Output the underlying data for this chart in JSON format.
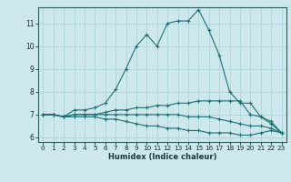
{
  "xlabel": "Humidex (Indice chaleur)",
  "background_color": "#cce8ec",
  "grid_color": "#aacdd4",
  "line_color": "#1e7070",
  "xlim": [
    -0.5,
    23.5
  ],
  "ylim": [
    5.8,
    11.7
  ],
  "xticks": [
    0,
    1,
    2,
    3,
    4,
    5,
    6,
    7,
    8,
    9,
    10,
    11,
    12,
    13,
    14,
    15,
    16,
    17,
    18,
    19,
    20,
    21,
    22,
    23
  ],
  "yticks": [
    6,
    7,
    8,
    9,
    10,
    11
  ],
  "curves": [
    {
      "x": [
        0,
        1,
        2,
        3,
        4,
        5,
        6,
        7,
        8,
        9,
        10,
        11,
        12,
        13,
        14,
        15,
        16,
        17,
        18,
        19,
        20,
        21,
        22,
        23
      ],
      "y": [
        7.0,
        7.0,
        6.9,
        7.2,
        7.2,
        7.3,
        7.5,
        8.1,
        9.0,
        10.0,
        10.5,
        10.0,
        11.0,
        11.1,
        11.1,
        11.6,
        10.7,
        9.6,
        8.0,
        7.5,
        7.5,
        6.9,
        6.7,
        6.2
      ]
    },
    {
      "x": [
        0,
        1,
        2,
        3,
        4,
        5,
        6,
        7,
        8,
        9,
        10,
        11,
        12,
        13,
        14,
        15,
        16,
        17,
        18,
        19,
        20,
        21,
        22,
        23
      ],
      "y": [
        7.0,
        7.0,
        6.9,
        7.0,
        7.0,
        7.0,
        7.1,
        7.2,
        7.2,
        7.3,
        7.3,
        7.4,
        7.4,
        7.5,
        7.5,
        7.6,
        7.6,
        7.6,
        7.6,
        7.6,
        7.0,
        6.9,
        6.6,
        6.2
      ]
    },
    {
      "x": [
        0,
        1,
        2,
        3,
        4,
        5,
        6,
        7,
        8,
        9,
        10,
        11,
        12,
        13,
        14,
        15,
        16,
        17,
        18,
        19,
        20,
        21,
        22,
        23
      ],
      "y": [
        7.0,
        7.0,
        6.9,
        7.0,
        7.0,
        7.0,
        7.0,
        7.0,
        7.0,
        7.0,
        7.0,
        7.0,
        7.0,
        7.0,
        6.9,
        6.9,
        6.9,
        6.8,
        6.7,
        6.6,
        6.5,
        6.5,
        6.4,
        6.2
      ]
    },
    {
      "x": [
        0,
        1,
        2,
        3,
        4,
        5,
        6,
        7,
        8,
        9,
        10,
        11,
        12,
        13,
        14,
        15,
        16,
        17,
        18,
        19,
        20,
        21,
        22,
        23
      ],
      "y": [
        7.0,
        7.0,
        6.9,
        6.9,
        6.9,
        6.9,
        6.8,
        6.8,
        6.7,
        6.6,
        6.5,
        6.5,
        6.4,
        6.4,
        6.3,
        6.3,
        6.2,
        6.2,
        6.2,
        6.1,
        6.1,
        6.2,
        6.3,
        6.2
      ]
    }
  ]
}
